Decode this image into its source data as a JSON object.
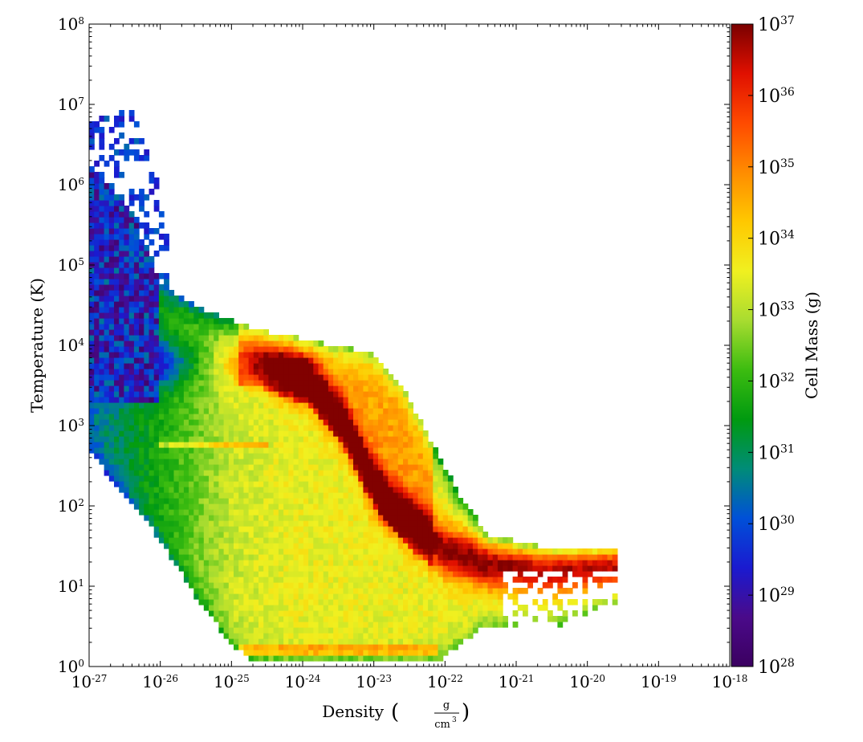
{
  "chart_data": {
    "type": "heatmap",
    "title": "",
    "xlabel": "Density",
    "xunit_num": "g",
    "xunit_den": "cm",
    "xunit_den_exp": "3",
    "ylabel": "Temperature  (K)",
    "colorbar_label": "Cell Mass  (g)",
    "x_scale": "log",
    "y_scale": "log",
    "xlim": [
      "1e-27",
      "1e-18"
    ],
    "ylim": [
      "1e0",
      "1e8"
    ],
    "clim": [
      "1e28",
      "1e37"
    ],
    "colormap": "spectral (purple-blue-green-yellow-orange-red-darkred)",
    "colorbar_placement": "right",
    "grid": false,
    "x_ticks": [
      {
        "base": "10",
        "exp": "-27"
      },
      {
        "base": "10",
        "exp": "-26"
      },
      {
        "base": "10",
        "exp": "-25"
      },
      {
        "base": "10",
        "exp": "-24"
      },
      {
        "base": "10",
        "exp": "-23"
      },
      {
        "base": "10",
        "exp": "-22"
      },
      {
        "base": "10",
        "exp": "-21"
      },
      {
        "base": "10",
        "exp": "-20"
      },
      {
        "base": "10",
        "exp": "-19"
      },
      {
        "base": "10",
        "exp": "-18"
      }
    ],
    "y_ticks": [
      {
        "base": "10",
        "exp": "0"
      },
      {
        "base": "10",
        "exp": "1"
      },
      {
        "base": "10",
        "exp": "2"
      },
      {
        "base": "10",
        "exp": "3"
      },
      {
        "base": "10",
        "exp": "4"
      },
      {
        "base": "10",
        "exp": "5"
      },
      {
        "base": "10",
        "exp": "6"
      },
      {
        "base": "10",
        "exp": "7"
      },
      {
        "base": "10",
        "exp": "8"
      }
    ],
    "colorbar_ticks": [
      {
        "base": "10",
        "exp": "28"
      },
      {
        "base": "10",
        "exp": "29"
      },
      {
        "base": "10",
        "exp": "30"
      },
      {
        "base": "10",
        "exp": "31"
      },
      {
        "base": "10",
        "exp": "32"
      },
      {
        "base": "10",
        "exp": "33"
      },
      {
        "base": "10",
        "exp": "34"
      },
      {
        "base": "10",
        "exp": "35"
      },
      {
        "base": "10",
        "exp": "36"
      },
      {
        "base": "10",
        "exp": "37"
      }
    ],
    "colormap_stops": [
      "#3b0060",
      "#4a0a8a",
      "#1a1ad0",
      "#0050d8",
      "#008c78",
      "#009a10",
      "#3cbc10",
      "#a8dc30",
      "#f0f020",
      "#ffc800",
      "#ff8c00",
      "#ff4a00",
      "#e01000",
      "#7a0000"
    ],
    "x_extent_log10": [
      -27,
      -18
    ],
    "y_extent_log10": [
      0,
      8
    ],
    "c_extent_log10": [
      28,
      37
    ],
    "features_log10": [
      {
        "name": "main dense ridge",
        "points": [
          [
            -24.5,
            3.8
          ],
          [
            -23.8,
            3.3
          ],
          [
            -23.3,
            2.5
          ],
          [
            -22.9,
            2.0
          ],
          [
            -22.3,
            1.6
          ]
        ],
        "peak": 36.8
      },
      {
        "name": "cold tail",
        "points": [
          [
            -22.3,
            1.3
          ],
          [
            -21.5,
            1.2
          ],
          [
            -20.8,
            1.1
          ],
          [
            -20.3,
            1.25
          ]
        ],
        "peak": 35.5
      },
      {
        "name": "warm plateau",
        "points": [
          [
            -24.5,
            3.75
          ],
          [
            -23.8,
            3.75
          ]
        ],
        "peak": 36.8
      },
      {
        "name": "low-density edge",
        "points": [
          [
            -26.0,
            4.3
          ],
          [
            -25.0,
            1.0
          ],
          [
            -24.7,
            0.3
          ]
        ],
        "peak": 32.5
      },
      {
        "name": "thin hot diffuse gas",
        "points": [
          [
            -26.9,
            5.5
          ],
          [
            -26.4,
            4.8
          ],
          [
            -26.0,
            3.2
          ]
        ],
        "peak": 29.5
      }
    ]
  }
}
